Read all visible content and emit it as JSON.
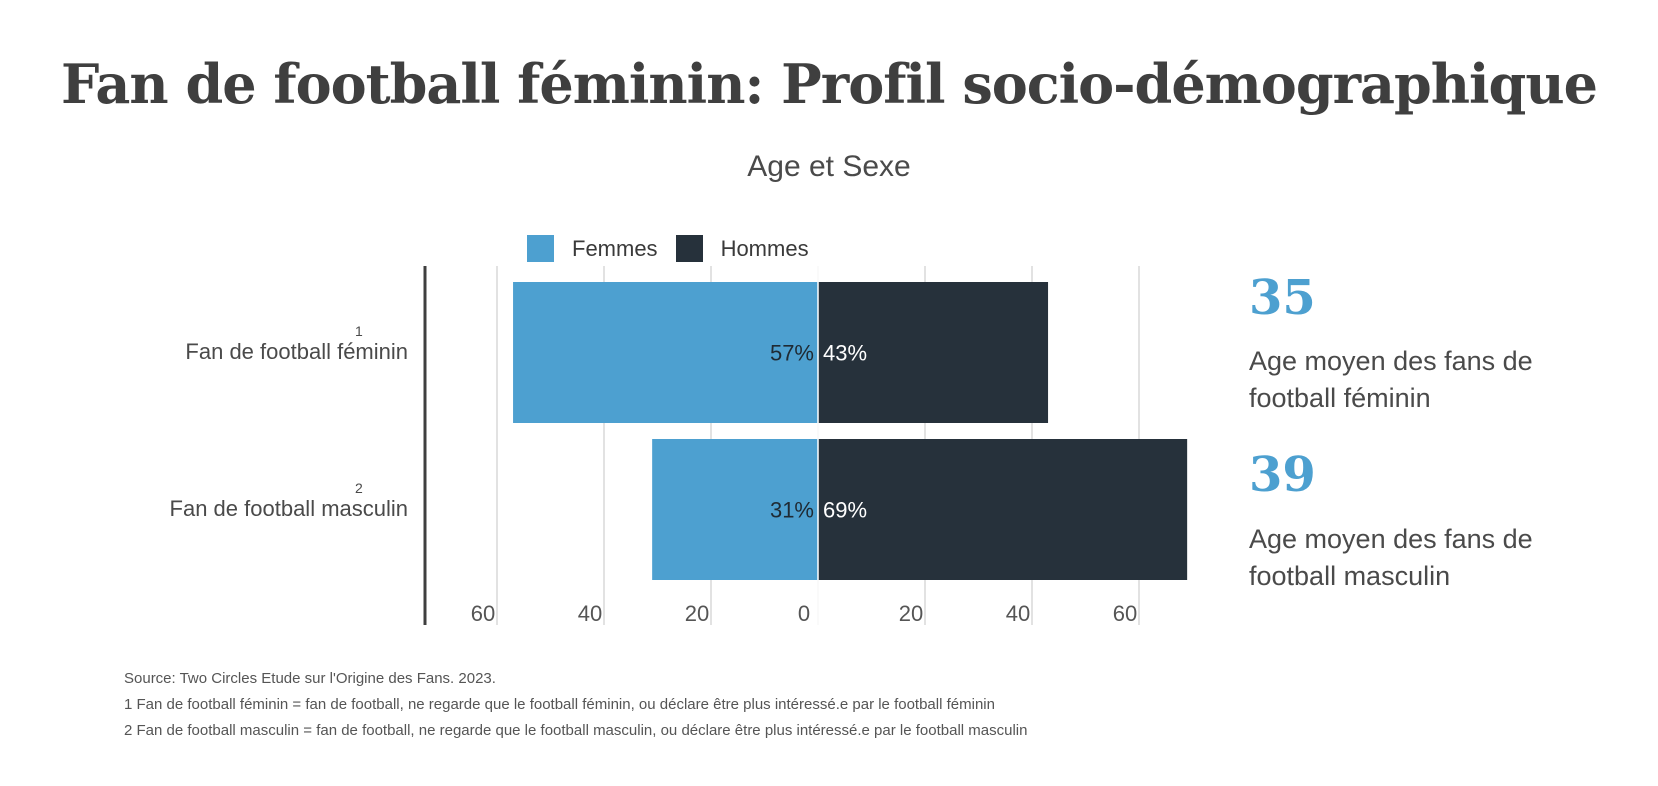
{
  "header": {
    "title": "Fan de football féminin: Profil socio-démographique",
    "subtitle": "Age et Sexe"
  },
  "legend": {
    "women": "Femmes",
    "men": "Hommes"
  },
  "rows": [
    {
      "label": "Fan de football féminin",
      "note": "1"
    },
    {
      "label": "Fan de football masculin",
      "note": "2"
    }
  ],
  "stats": [
    {
      "value": "35",
      "text": "Age moyen des fans de football féminin"
    },
    {
      "value": "39",
      "text": "Age moyen des fans de football masculin"
    }
  ],
  "footnotes": {
    "source": "Source: Two Circles Etude sur l'Origine des Fans. 2023.",
    "note1": "1 Fan de football féminin = fan de football, ne regarde que le football féminin, ou déclare être plus intéressé.e par le football féminin",
    "note2": "2 Fan de football masculin = fan de football, ne regarde que le football masculin, ou déclare être plus intéressé.e par le football masculin"
  },
  "colors": {
    "women": "#4da0d0",
    "men": "#26313b",
    "accent": "#4da0d0"
  },
  "chart_data": {
    "type": "bar",
    "orientation": "horizontal-diverging",
    "categories": [
      "Fan de football féminin",
      "Fan de football masculin"
    ],
    "series": [
      {
        "name": "Femmes",
        "values": [
          57,
          31
        ]
      },
      {
        "name": "Hommes",
        "values": [
          43,
          69
        ]
      }
    ],
    "data_labels": [
      [
        "57%",
        "43%"
      ],
      [
        "31%",
        "69%"
      ]
    ],
    "xlim": [
      -60,
      60
    ],
    "xticks": [
      "60",
      "40",
      "20",
      "0",
      "20",
      "40",
      "60"
    ],
    "xtick_values": [
      -60,
      -40,
      -20,
      0,
      20,
      40,
      60
    ],
    "grid": true,
    "legend_position": "top"
  }
}
